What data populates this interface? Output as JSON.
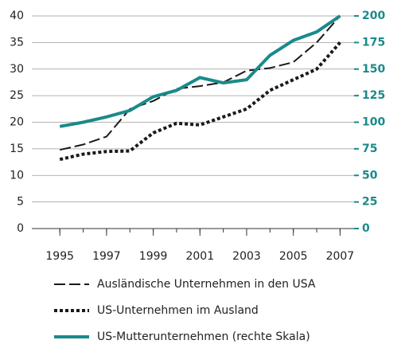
{
  "chart_data": {
    "type": "line",
    "x": [
      1995,
      1996,
      1997,
      1998,
      1999,
      2000,
      2001,
      2002,
      2003,
      2004,
      2005,
      2006,
      2007
    ],
    "xlim": [
      1993.8,
      2007.6
    ],
    "xticks": [
      1995,
      1997,
      1999,
      2001,
      2003,
      2005,
      2007
    ],
    "ylim": [
      0,
      40
    ],
    "yticks": [
      0,
      5,
      10,
      15,
      20,
      25,
      30,
      35,
      40
    ],
    "y2lim": [
      0,
      200
    ],
    "y2ticks": [
      0,
      25,
      50,
      75,
      100,
      125,
      150,
      175,
      200
    ],
    "grid": true,
    "legend": "bottom",
    "series": [
      {
        "name": "Ausländische Unternehmen in den USA",
        "color": "#1a1a1a",
        "dash": "dashed",
        "values": [
          14.8,
          15.8,
          17.3,
          22.5,
          24,
          26.3,
          26.8,
          27.5,
          29.7,
          30.2,
          31.3,
          35,
          40
        ]
      },
      {
        "name": "US-Unternehmen im Ausland",
        "color": "#1a1a1a",
        "dash": "dotted",
        "values": [
          13,
          14,
          14.5,
          14.6,
          18,
          19.8,
          19.5,
          21,
          22.5,
          26,
          28,
          30,
          35
        ]
      },
      {
        "name": "US-Mutterunternehmen (rechte Skala)",
        "color": "#1a8a8a",
        "dash": "solid",
        "axis": "y2",
        "values": [
          96,
          100,
          105,
          111,
          124,
          130,
          142,
          137,
          140,
          163,
          177,
          185,
          200
        ]
      }
    ]
  }
}
